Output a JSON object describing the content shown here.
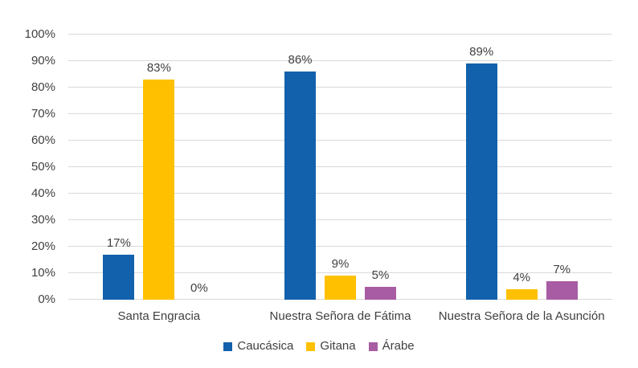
{
  "chart_data": {
    "type": "bar",
    "title": "",
    "xlabel": "",
    "ylabel": "",
    "categories": [
      "Santa Engracia",
      "Nuestra Señora de Fátima",
      "Nuestra Señora de la Asunción"
    ],
    "series": [
      {
        "name": "Caucásica",
        "color": "#1261ac",
        "values": [
          17,
          86,
          89
        ],
        "data_labels": [
          "17%",
          "86%",
          "89%"
        ]
      },
      {
        "name": "Gitana",
        "color": "#ffc000",
        "values": [
          83,
          9,
          4
        ],
        "data_labels": [
          "83%",
          "9%",
          "4%"
        ]
      },
      {
        "name": "Árabe",
        "color": "#a85ca3",
        "values": [
          0,
          5,
          7
        ],
        "data_labels": [
          "0%",
          "5%",
          "7%"
        ]
      }
    ],
    "ylim": [
      0,
      100
    ],
    "y_ticks": [
      "0%",
      "10%",
      "20%",
      "30%",
      "40%",
      "50%",
      "60%",
      "70%",
      "80%",
      "90%",
      "100%"
    ],
    "grid": true,
    "legend_position": "bottom",
    "data_labels_shown": true
  },
  "colors": {
    "background": "#ffffff",
    "gridline": "#d9d9d9",
    "axis_line": "#d9d9d9",
    "text": "#404040"
  }
}
